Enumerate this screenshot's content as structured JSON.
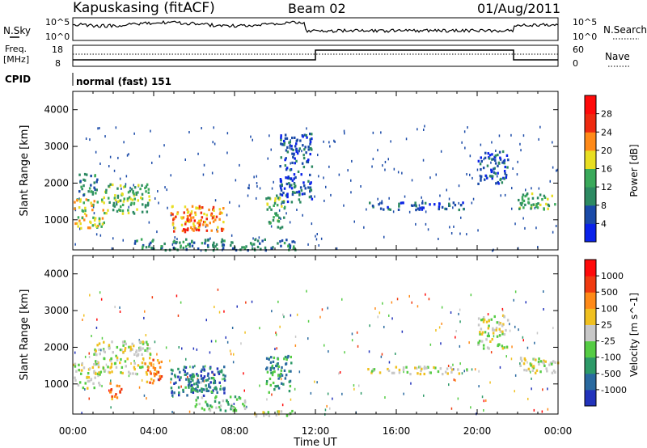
{
  "header": {
    "station": "Kapuskasing (fitACF)",
    "beam": "Beam 02",
    "date": "01/Aug/2011"
  },
  "sky_panel": {
    "left_label": "N.Sky",
    "right_label": "N.Search",
    "ticks": [
      "10^5",
      "10^0"
    ]
  },
  "freq_panel": {
    "label_line1": "Freq.",
    "label_line2": "[MHz]",
    "left_ticks": [
      "18",
      "8"
    ],
    "right_ticks": [
      "60",
      "0"
    ],
    "right_label": "Nave"
  },
  "cpid": {
    "label": "CPID",
    "value": "normal (fast) 151"
  },
  "chart_data": [
    {
      "type": "heatmap",
      "ylabel": "Slant Range [km]",
      "xlabel": "",
      "xlim": [
        "00:00",
        "24:00"
      ],
      "ylim": [
        180,
        4500
      ],
      "y_ticks": [
        "1000",
        "2000",
        "3000",
        "4000"
      ],
      "colorbar": {
        "label": "Power [dB]",
        "ticks": [
          "4",
          "8",
          "12",
          "16",
          "20",
          "24",
          "28"
        ],
        "colors": [
          "#0a22ea",
          "#1a4aa8",
          "#2d8a62",
          "#3aa95a",
          "#e8de22",
          "#ff8a18",
          "#ee2a10",
          "#ff0a0a"
        ]
      },
      "regions": [
        {
          "t_start": 0.0,
          "t_end": 1.5,
          "range_min": 800,
          "range_max": 1600,
          "value_level": 4
        },
        {
          "t_start": 0.2,
          "t_end": 1.2,
          "range_min": 1700,
          "range_max": 2300,
          "value_level": 2
        },
        {
          "t_start": 1.5,
          "t_end": 3.8,
          "range_min": 1200,
          "range_max": 2000,
          "value_level": 3
        },
        {
          "t_start": 4.8,
          "t_end": 7.5,
          "range_min": 700,
          "range_max": 1400,
          "value_level": 5
        },
        {
          "t_start": 5.3,
          "t_end": 6.3,
          "range_min": 750,
          "range_max": 1100,
          "value_level": 6
        },
        {
          "t_start": 9.5,
          "t_end": 10.5,
          "range_min": 800,
          "range_max": 1700,
          "value_level": 3
        },
        {
          "t_start": 3.0,
          "t_end": 11.0,
          "range_min": 200,
          "range_max": 500,
          "value_level": 2
        },
        {
          "t_start": 10.2,
          "t_end": 11.8,
          "range_min": 1500,
          "range_max": 3400,
          "value_level": 1
        },
        {
          "t_start": 14.5,
          "t_end": 19.5,
          "range_min": 1300,
          "range_max": 1500,
          "value_level": 1
        },
        {
          "t_start": 20.0,
          "t_end": 21.5,
          "range_min": 2000,
          "range_max": 2900,
          "value_level": 1
        },
        {
          "t_start": 22.0,
          "t_end": 24.0,
          "range_min": 1300,
          "range_max": 1750,
          "value_level": 3
        }
      ]
    },
    {
      "type": "heatmap",
      "ylabel": "Slant Range [km]",
      "xlabel": "Time UT",
      "xlim": [
        "00:00",
        "24:00"
      ],
      "ylim": [
        180,
        4500
      ],
      "x_ticks": [
        "00:00",
        "04:00",
        "08:00",
        "12:00",
        "16:00",
        "20:00",
        "00:00"
      ],
      "y_ticks": [
        "1000",
        "2000",
        "3000",
        "4000"
      ],
      "colorbar": {
        "label": "Velocity [m s^-1]",
        "ticks": [
          "1000",
          "500",
          "100",
          "25",
          "-25",
          "-100",
          "-500",
          "-1000"
        ],
        "colors": [
          "#2233bb",
          "#2a6aa0",
          "#2d9a68",
          "#55cc44",
          "#c8c8c8",
          "#f0c020",
          "#ff8a18",
          "#f03a10",
          "#ff0a0a"
        ]
      },
      "regions": [
        {
          "t_start": 0.0,
          "t_end": 1.3,
          "range_min": 900,
          "range_max": 1600,
          "value_level": 4
        },
        {
          "t_start": 1.0,
          "t_end": 3.8,
          "range_min": 1300,
          "range_max": 2200,
          "value_level": 4
        },
        {
          "t_start": 1.8,
          "t_end": 2.4,
          "range_min": 600,
          "range_max": 1100,
          "value_level": 6
        },
        {
          "t_start": 3.5,
          "t_end": 4.4,
          "range_min": 1000,
          "range_max": 1700,
          "value_level": 6
        },
        {
          "t_start": 4.8,
          "t_end": 7.5,
          "range_min": 700,
          "range_max": 1500,
          "value_level": 1
        },
        {
          "t_start": 5.5,
          "t_end": 7.0,
          "range_min": 800,
          "range_max": 1300,
          "value_level": 2
        },
        {
          "t_start": 6.0,
          "t_end": 8.5,
          "range_min": 300,
          "range_max": 700,
          "value_level": 3
        },
        {
          "t_start": 8.5,
          "t_end": 11.0,
          "range_min": 150,
          "range_max": 300,
          "value_level": 4
        },
        {
          "t_start": 9.5,
          "t_end": 10.8,
          "range_min": 800,
          "range_max": 1800,
          "value_level": 2
        },
        {
          "t_start": 14.5,
          "t_end": 19.5,
          "range_min": 1300,
          "range_max": 1500,
          "value_level": 4
        },
        {
          "t_start": 20.0,
          "t_end": 21.5,
          "range_min": 2000,
          "range_max": 2900,
          "value_level": 4
        },
        {
          "t_start": 22.0,
          "t_end": 24.0,
          "range_min": 1300,
          "range_max": 1750,
          "value_level": 4
        }
      ]
    }
  ]
}
